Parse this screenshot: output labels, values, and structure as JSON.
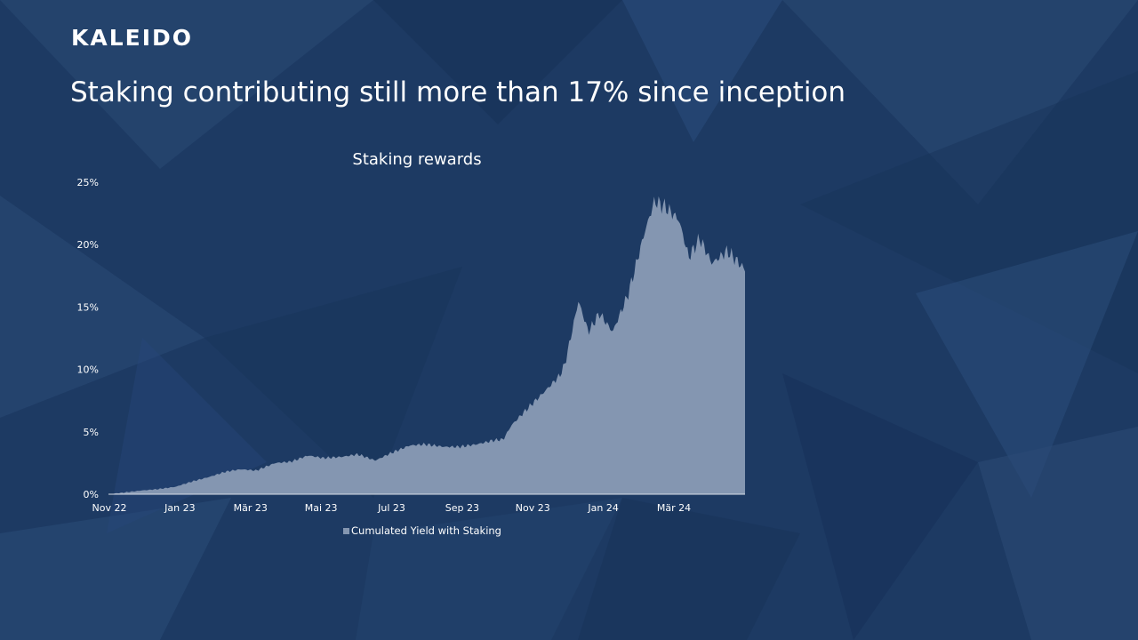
{
  "brand": {
    "logo_text": "KALEIDO"
  },
  "slide": {
    "headline": "Staking contributing still more than 17% since inception"
  },
  "colors": {
    "background": "#1d3a63",
    "area_fill": "#8496b1",
    "text": "#ffffff"
  },
  "chart_data": {
    "type": "area",
    "title": "Staking rewards",
    "xlabel": "",
    "ylabel": "",
    "x_ticks": [
      "Nov 22",
      "Jan 23",
      "Mär 23",
      "Mai 23",
      "Jul 23",
      "Sep 23",
      "Nov 23",
      "Jan 24",
      "Mär 24"
    ],
    "y_ticks": [
      "0%",
      "5%",
      "10%",
      "15%",
      "20%",
      "25%"
    ],
    "ylim": [
      0,
      25
    ],
    "x_range": [
      "2022-11-01",
      "2024-05-31"
    ],
    "grid": false,
    "legend": {
      "position": "bottom"
    },
    "series": [
      {
        "name": "Cumulated Yield with Staking",
        "x": [
          "2022-11-01",
          "2022-12-01",
          "2022-12-15",
          "2023-01-01",
          "2023-01-15",
          "2023-02-01",
          "2023-02-15",
          "2023-03-01",
          "2023-03-15",
          "2023-04-01",
          "2023-04-15",
          "2023-05-01",
          "2023-05-15",
          "2023-06-01",
          "2023-06-15",
          "2023-07-01",
          "2023-07-15",
          "2023-08-01",
          "2023-08-15",
          "2023-09-01",
          "2023-09-15",
          "2023-10-01",
          "2023-10-15",
          "2023-10-25",
          "2023-11-01",
          "2023-11-15",
          "2023-12-01",
          "2023-12-15",
          "2023-12-20",
          "2024-01-01",
          "2024-01-10",
          "2024-01-20",
          "2024-02-01",
          "2024-02-15",
          "2024-03-01",
          "2024-03-10",
          "2024-03-20",
          "2024-04-01",
          "2024-04-10",
          "2024-04-20",
          "2024-05-01",
          "2024-05-15",
          "2024-05-31"
        ],
        "values": [
          0.0,
          0.3,
          0.4,
          0.6,
          1.0,
          1.4,
          1.8,
          2.0,
          1.9,
          2.5,
          2.6,
          3.1,
          2.9,
          3.0,
          3.2,
          2.7,
          3.3,
          3.9,
          4.0,
          3.8,
          3.8,
          4.0,
          4.3,
          4.4,
          5.5,
          6.8,
          8.2,
          9.5,
          10.5,
          15.5,
          13.0,
          14.5,
          13.0,
          16.0,
          21.0,
          23.5,
          23.0,
          22.0,
          19.0,
          20.5,
          18.5,
          19.5,
          18.0
        ]
      }
    ]
  }
}
